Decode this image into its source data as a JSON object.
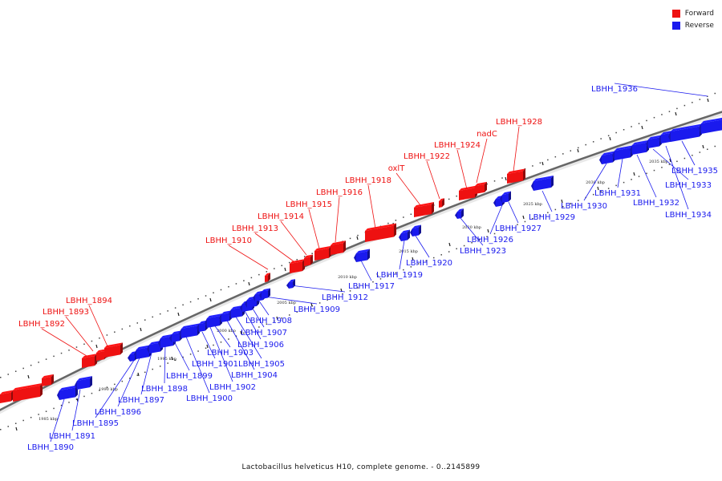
{
  "legend": {
    "forward_label": "Forward",
    "reverse_label": "Reverse",
    "forward_color": "#ee1111",
    "reverse_color": "#1a1aee"
  },
  "caption": "Lactobacillus helveticus H10, complete genome. - 0..2145899",
  "scale_ticks": [
    "1985 kbp",
    "1990 kbp",
    "1995 kbp",
    "2000 kbp",
    "2005 kbp",
    "2010 kbp",
    "2015 kbp",
    "2020 kbp",
    "2025 kbp",
    "2030 kbp",
    "2035 kbp"
  ],
  "forward_genes": [
    {
      "label": "LBHH_1892"
    },
    {
      "label": "LBHH_1893"
    },
    {
      "label": "LBHH_1894"
    },
    {
      "label": "LBHH_1910"
    },
    {
      "label": "LBHH_1913"
    },
    {
      "label": "LBHH_1914"
    },
    {
      "label": "LBHH_1915"
    },
    {
      "label": "LBHH_1916"
    },
    {
      "label": "LBHH_1918"
    },
    {
      "label": "oxlT"
    },
    {
      "label": "LBHH_1922"
    },
    {
      "label": "LBHH_1924"
    },
    {
      "label": "nadC"
    },
    {
      "label": "LBHH_1928"
    }
  ],
  "reverse_genes": [
    {
      "label": "LBHH_1890"
    },
    {
      "label": "LBHH_1891"
    },
    {
      "label": "LBHH_1895"
    },
    {
      "label": "LBHH_1896"
    },
    {
      "label": "LBHH_1897"
    },
    {
      "label": "LBHH_1898"
    },
    {
      "label": "LBHH_1899"
    },
    {
      "label": "LBHH_1900"
    },
    {
      "label": "LBHH_1901"
    },
    {
      "label": "LBHH_1902"
    },
    {
      "label": "LBHH_1903"
    },
    {
      "label": "LBHH_1904"
    },
    {
      "label": "LBHH_1905"
    },
    {
      "label": "LBHH_1906"
    },
    {
      "label": "LBHH_1907"
    },
    {
      "label": "LBHH_1908"
    },
    {
      "label": "LBHH_1909"
    },
    {
      "label": "LBHH_1912"
    },
    {
      "label": "LBHH_1917"
    },
    {
      "label": "LBHH_1919"
    },
    {
      "label": "LBHH_1920"
    },
    {
      "label": "LBHH_1923"
    },
    {
      "label": "LBHH_1926"
    },
    {
      "label": "LBHH_1927"
    },
    {
      "label": "LBHH_1929"
    },
    {
      "label": "LBHH_1930"
    },
    {
      "label": "LBHH_1931"
    },
    {
      "label": "LBHH_1932"
    },
    {
      "label": "LBHH_1933"
    },
    {
      "label": "LBHH_1934"
    },
    {
      "label": "LBHH_1935"
    },
    {
      "label": "LBHH_1936"
    }
  ]
}
